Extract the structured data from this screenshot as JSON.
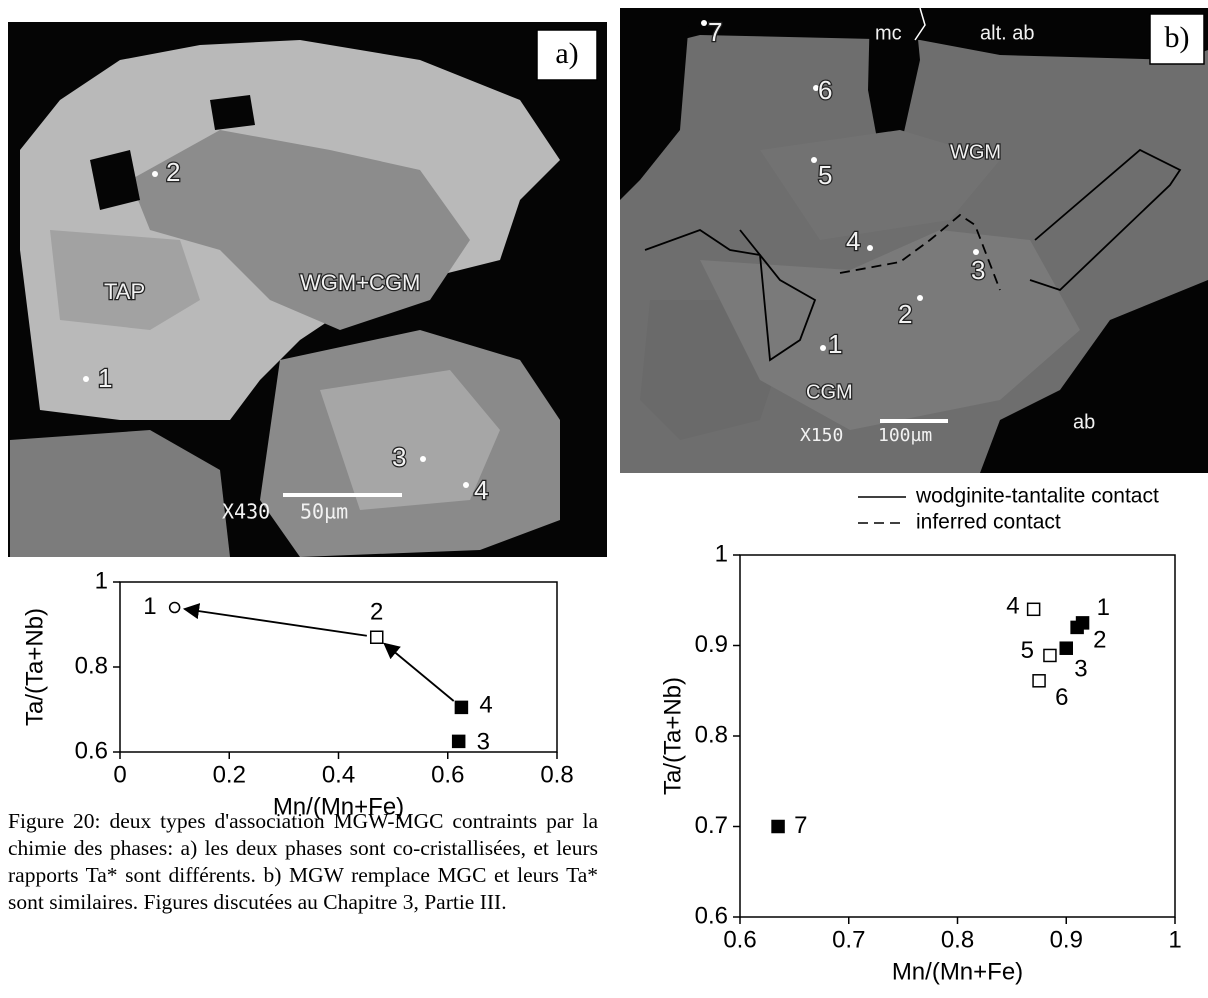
{
  "micrograph_a": {
    "panel": "a)",
    "phases": [
      "TAP",
      "WGM+CGM"
    ],
    "points": [
      "1",
      "2",
      "3",
      "4"
    ],
    "magnification": "X430",
    "scale_bar": "50µm"
  },
  "micrograph_b": {
    "panel": "b)",
    "phases": [
      "mc",
      "alt. ab",
      "WGM",
      "CGM",
      "ab"
    ],
    "points": [
      "1",
      "2",
      "3",
      "4",
      "5",
      "6",
      "7"
    ],
    "magnification": "X150",
    "scale_bar": "100µm"
  },
  "legend": {
    "items": [
      "wodginite-tantalite contact",
      "inferred contact"
    ]
  },
  "chart_data": [
    {
      "type": "scatter",
      "x_label": "Mn/(Mn+Fe)",
      "y_label": "Ta/(Ta+Nb)",
      "xlim": [
        0,
        0.8
      ],
      "xticks": [
        0,
        0.2,
        0.4,
        0.6,
        0.8
      ],
      "ylim": [
        0.6,
        1
      ],
      "yticks": [
        0.6,
        0.8,
        1
      ],
      "points": [
        {
          "label": "1",
          "x": 0.1,
          "y": 0.94,
          "marker": "open-circle"
        },
        {
          "label": "2",
          "x": 0.47,
          "y": 0.87,
          "marker": "open-square"
        },
        {
          "label": "3",
          "x": 0.62,
          "y": 0.625,
          "marker": "filled-square"
        },
        {
          "label": "4",
          "x": 0.625,
          "y": 0.705,
          "marker": "filled-square"
        }
      ],
      "arrows": [
        [
          1,
          0
        ],
        [
          3,
          1
        ]
      ]
    },
    {
      "type": "scatter",
      "x_label": "Mn/(Mn+Fe)",
      "y_label": "Ta/(Ta+Nb)",
      "xlim": [
        0.6,
        1
      ],
      "xticks": [
        0.6,
        0.7,
        0.8,
        0.9,
        1
      ],
      "ylim": [
        0.6,
        1
      ],
      "yticks": [
        0.6,
        0.7,
        0.8,
        0.9,
        1
      ],
      "points": [
        {
          "label": "1",
          "x": 0.915,
          "y": 0.925,
          "marker": "filled-square"
        },
        {
          "label": "2",
          "x": 0.91,
          "y": 0.92,
          "marker": "filled-square"
        },
        {
          "label": "3",
          "x": 0.9,
          "y": 0.897,
          "marker": "filled-square"
        },
        {
          "label": "4",
          "x": 0.87,
          "y": 0.94,
          "marker": "open-square"
        },
        {
          "label": "5",
          "x": 0.885,
          "y": 0.889,
          "marker": "open-square"
        },
        {
          "label": "6",
          "x": 0.875,
          "y": 0.861,
          "marker": "open-square"
        },
        {
          "label": "7",
          "x": 0.635,
          "y": 0.7,
          "marker": "filled-square"
        }
      ]
    }
  ],
  "caption": "Figure 20: deux types d'association MGW-MGC contraints par la chimie des phases: a) les deux phases sont co-cristallisées, et leurs rapports Ta* sont différents. b) MGW remplace MGC et leurs Ta* sont similaires. Figures discutées au Chapitre 3, Partie III."
}
